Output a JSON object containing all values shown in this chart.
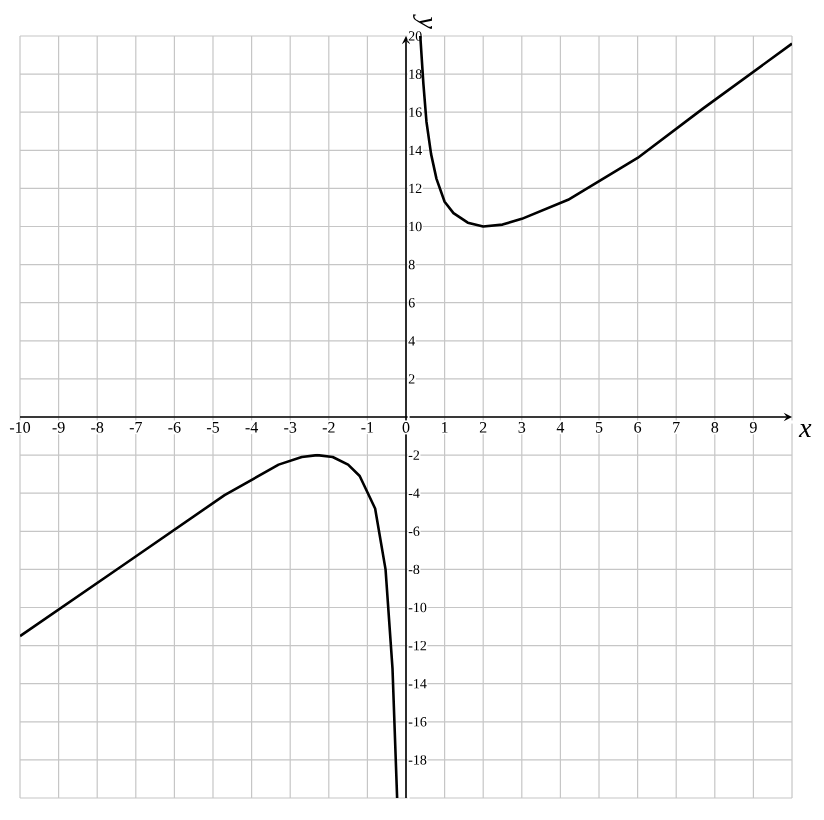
{
  "chart_data": {
    "type": "line",
    "xlabel": "x",
    "ylabel": "y",
    "xlim": [
      -10,
      10
    ],
    "ylim": [
      -20,
      20
    ],
    "xticks": [
      -10,
      -9,
      -8,
      -7,
      -6,
      -5,
      -4,
      -3,
      -2,
      -1,
      0,
      1,
      2,
      3,
      4,
      5,
      6,
      7,
      8,
      9,
      {
        "value": 10,
        "label": null
      }
    ],
    "yticks": [
      {
        "value": -20,
        "label": null
      },
      -18,
      -16,
      -14,
      -12,
      -10,
      -8,
      -6,
      -4,
      -2,
      {
        "value": 0,
        "label": null
      },
      2,
      4,
      6,
      8,
      10,
      12,
      14,
      16,
      18,
      20
    ],
    "grid": true,
    "series": [
      {
        "type": "line",
        "color": "#000000",
        "x": [
          0.37,
          0.45,
          0.53,
          0.65,
          0.79,
          1.0,
          1.23,
          1.6,
          2.0,
          2.5,
          3.0,
          4.2,
          6.0,
          7.7,
          10.0
        ],
        "values": [
          20,
          17.5,
          15.5,
          13.8,
          12.5,
          11.3,
          10.7,
          10.2,
          10.0,
          10.1,
          10.4,
          11.4,
          13.6,
          16.2,
          19.6
        ]
      },
      {
        "type": "line",
        "color": "#000000",
        "x": [
          -10,
          -7.2,
          -4.7,
          -3.3,
          -2.7,
          -2.3,
          -1.9,
          -1.5,
          -1.2,
          -0.8,
          -0.53,
          -0.35,
          -0.23
        ],
        "values": [
          -11.5,
          -7.6,
          -4.1,
          -2.5,
          -2.1,
          -2.0,
          -2.1,
          -2.5,
          -3.1,
          -4.8,
          -8.0,
          -13.2,
          -20
        ]
      }
    ]
  }
}
